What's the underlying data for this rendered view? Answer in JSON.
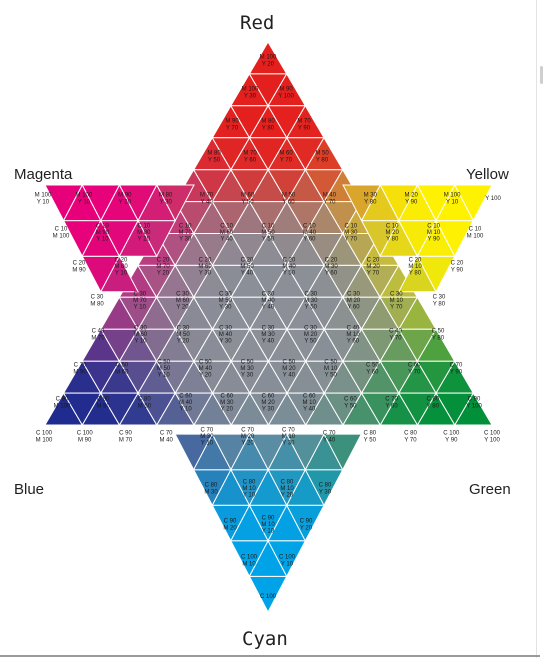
{
  "vertices": {
    "red": "Red",
    "yellow": "Yellow",
    "green": "Green",
    "cyan": "Cyan",
    "blue": "Blue",
    "magenta": "Magenta"
  },
  "colors": {
    "c": "#00a3e8",
    "m": "#e8007a",
    "y": "#fff200",
    "k": "#1e1e1e",
    "grid_line": "#ffffff"
  },
  "swatches": {
    "top_spike": [
      [
        "M 100\nY 20"
      ],
      [
        "M 100\nY 30",
        "M 90\nY 100"
      ],
      [
        "M 90\nY 70",
        "M 80\nY 80",
        "M 70\nY 90"
      ],
      [
        "M 80\nY 50",
        "M 70\nY 60",
        "M 60\nY 70",
        "M 50\nY 80"
      ]
    ],
    "band_rows": [
      [
        "M 100\nY 10",
        "M 100\nY 10",
        "M 90\nY 20",
        "M 80\nY 30",
        "M 70\nY 40",
        "M 60\nY 50",
        "M 50\nY 60",
        "M 40\nY 70",
        "M 30\nY 80",
        "M 20\nY 90",
        "M 100\nY 10",
        "Y 100"
      ],
      [
        "C 10\nM 100",
        "C 10\nM 90\nY 10",
        "C 10\nM 80\nY 20",
        "C 10\nM 70\nY 30",
        "C 10\nM 60\nY 40",
        "C 10\nM 50\nY 50",
        "C 10\nM 40\nY 60",
        "C 10\nM 30\nY 70",
        "C 10\nM 20\nY 80",
        "C 10\nM 10\nY 90",
        "C 10\nM 100"
      ],
      [
        "C 20\nM 90",
        "C 20\nM 80\nY 10",
        "C 20\nM 70\nY 20",
        "C 20\nM 60\nY 30",
        "C 20\nM 50\nY 40",
        "C 20\nM 40\nY 50",
        "C 20\nM 30\nY 60",
        "C 20\nM 20\nY 70",
        "C 20\nM 10\nY 80",
        "C 20\nY 90"
      ],
      [
        "C 30\nM 80",
        "C 30\nM 70\nY 10",
        "C 30\nM 60\nY 20",
        "C 30\nM 50\nY 30",
        "C 30\nM 40\nY 40",
        "C 30\nM 30\nY 50",
        "C 30\nM 20\nY 60",
        "C 30\nM 10\nY 70",
        "C 30\nY 80"
      ],
      [
        "C 40\nM 70",
        "C 30\nM 60\nY 10",
        "C 30\nM 50\nY 20",
        "C 30\nM 40\nY 30",
        "C 30\nM 30\nY 40",
        "C 30\nM 20\nY 50",
        "C 40\nM 10\nY 60",
        "C 40\nY 70",
        "C 50\nY 80"
      ],
      [
        "C 70\nM 90",
        "C 50\nM 60",
        "C 50\nM 50\nY 10",
        "C 50\nM 40\nY 20",
        "C 50\nM 30\nY 30",
        "C 50\nM 20\nY 40",
        "C 50\nM 10\nY 50",
        "C 50\nY 60",
        "C 60\nY 70",
        "C 70\nY 90"
      ],
      [
        "C 90\nM 100",
        "C 80\nM 80",
        "C 80\nM 50",
        "C 60\nM 40\nY 10",
        "C 60\nM 30\nY 20",
        "C 60\nM 20\nY 30",
        "C 60\nM 10\nY 40",
        "C 60\nY 50",
        "C 70\nY 60",
        "C 80\nY 80",
        "C 90\nY 100"
      ],
      [
        "C 100\nM 100",
        "C 100\nM 90",
        "C 90\nM 70",
        "C 70\nM 40",
        "C 70\nM 30\nY 10",
        "C 70\nM 20\nY 20",
        "C 70\nM 10\nY 30",
        "C 70\nY 40",
        "C 80\nY 50",
        "C 80\nY 70",
        "C 100\nY 90",
        "C 100\nY 100"
      ]
    ],
    "bottom_spike": [
      [
        "C 80\nM 30",
        "C 80\nM 10\nY 10",
        "C 80\nM 10\nY 20",
        "C 80\nY 30"
      ],
      [
        "C 90\nM 20",
        "C 90\nM 10\nY 10",
        "C 90\nY 20"
      ],
      [
        "C 100\nM 10",
        "C 100\nY 10"
      ],
      [
        "C 100"
      ]
    ]
  }
}
